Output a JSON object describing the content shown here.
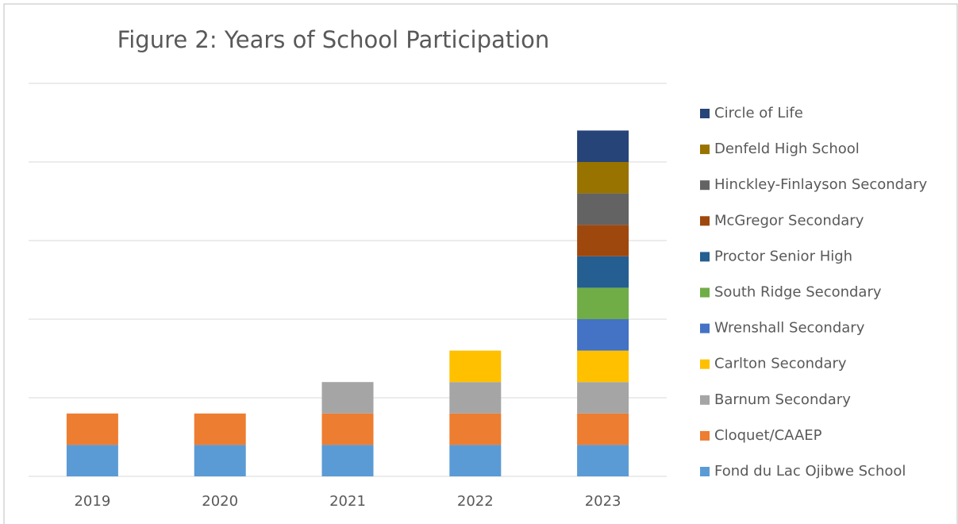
{
  "chart_data": {
    "type": "stacked_bar",
    "title": "Figure 2: Years of School Participation",
    "categories": [
      "2019",
      "2020",
      "2021",
      "2022",
      "2023"
    ],
    "series": [
      {
        "name": "Fond du Lac Ojibwe School",
        "color": "#5b9bd5",
        "values": [
          1,
          1,
          1,
          1,
          1
        ]
      },
      {
        "name": "Cloquet/CAAEP",
        "color": "#ed7d31",
        "values": [
          1,
          1,
          1,
          1,
          1
        ]
      },
      {
        "name": "Barnum Secondary",
        "color": "#a5a5a5",
        "values": [
          null,
          null,
          1,
          1,
          1
        ]
      },
      {
        "name": "Carlton Secondary",
        "color": "#ffc000",
        "values": [
          null,
          null,
          null,
          1,
          1
        ]
      },
      {
        "name": "Wrenshall Secondary",
        "color": "#4472c4",
        "values": [
          null,
          null,
          null,
          null,
          1
        ]
      },
      {
        "name": "South Ridge Secondary",
        "color": "#70ad47",
        "values": [
          null,
          null,
          null,
          null,
          1
        ]
      },
      {
        "name": "Proctor Senior High",
        "color": "#255e91",
        "values": [
          null,
          null,
          null,
          null,
          1
        ]
      },
      {
        "name": "McGregor Secondary",
        "color": "#9e480e",
        "values": [
          null,
          null,
          null,
          null,
          1
        ]
      },
      {
        "name": "Hinckley-Finlayson Secondary",
        "color": "#636363",
        "values": [
          null,
          null,
          null,
          null,
          1
        ]
      },
      {
        "name": "Denfeld High School",
        "color": "#997300",
        "values": [
          null,
          null,
          null,
          null,
          1
        ]
      },
      {
        "name": "Circle of Life",
        "color": "#264478",
        "values": [
          null,
          null,
          null,
          null,
          1
        ]
      }
    ],
    "ylim": [
      0,
      12.5
    ],
    "yticks": [
      0,
      2.5,
      5,
      7.5,
      10,
      12.5
    ],
    "grid": true,
    "legend": "right"
  }
}
